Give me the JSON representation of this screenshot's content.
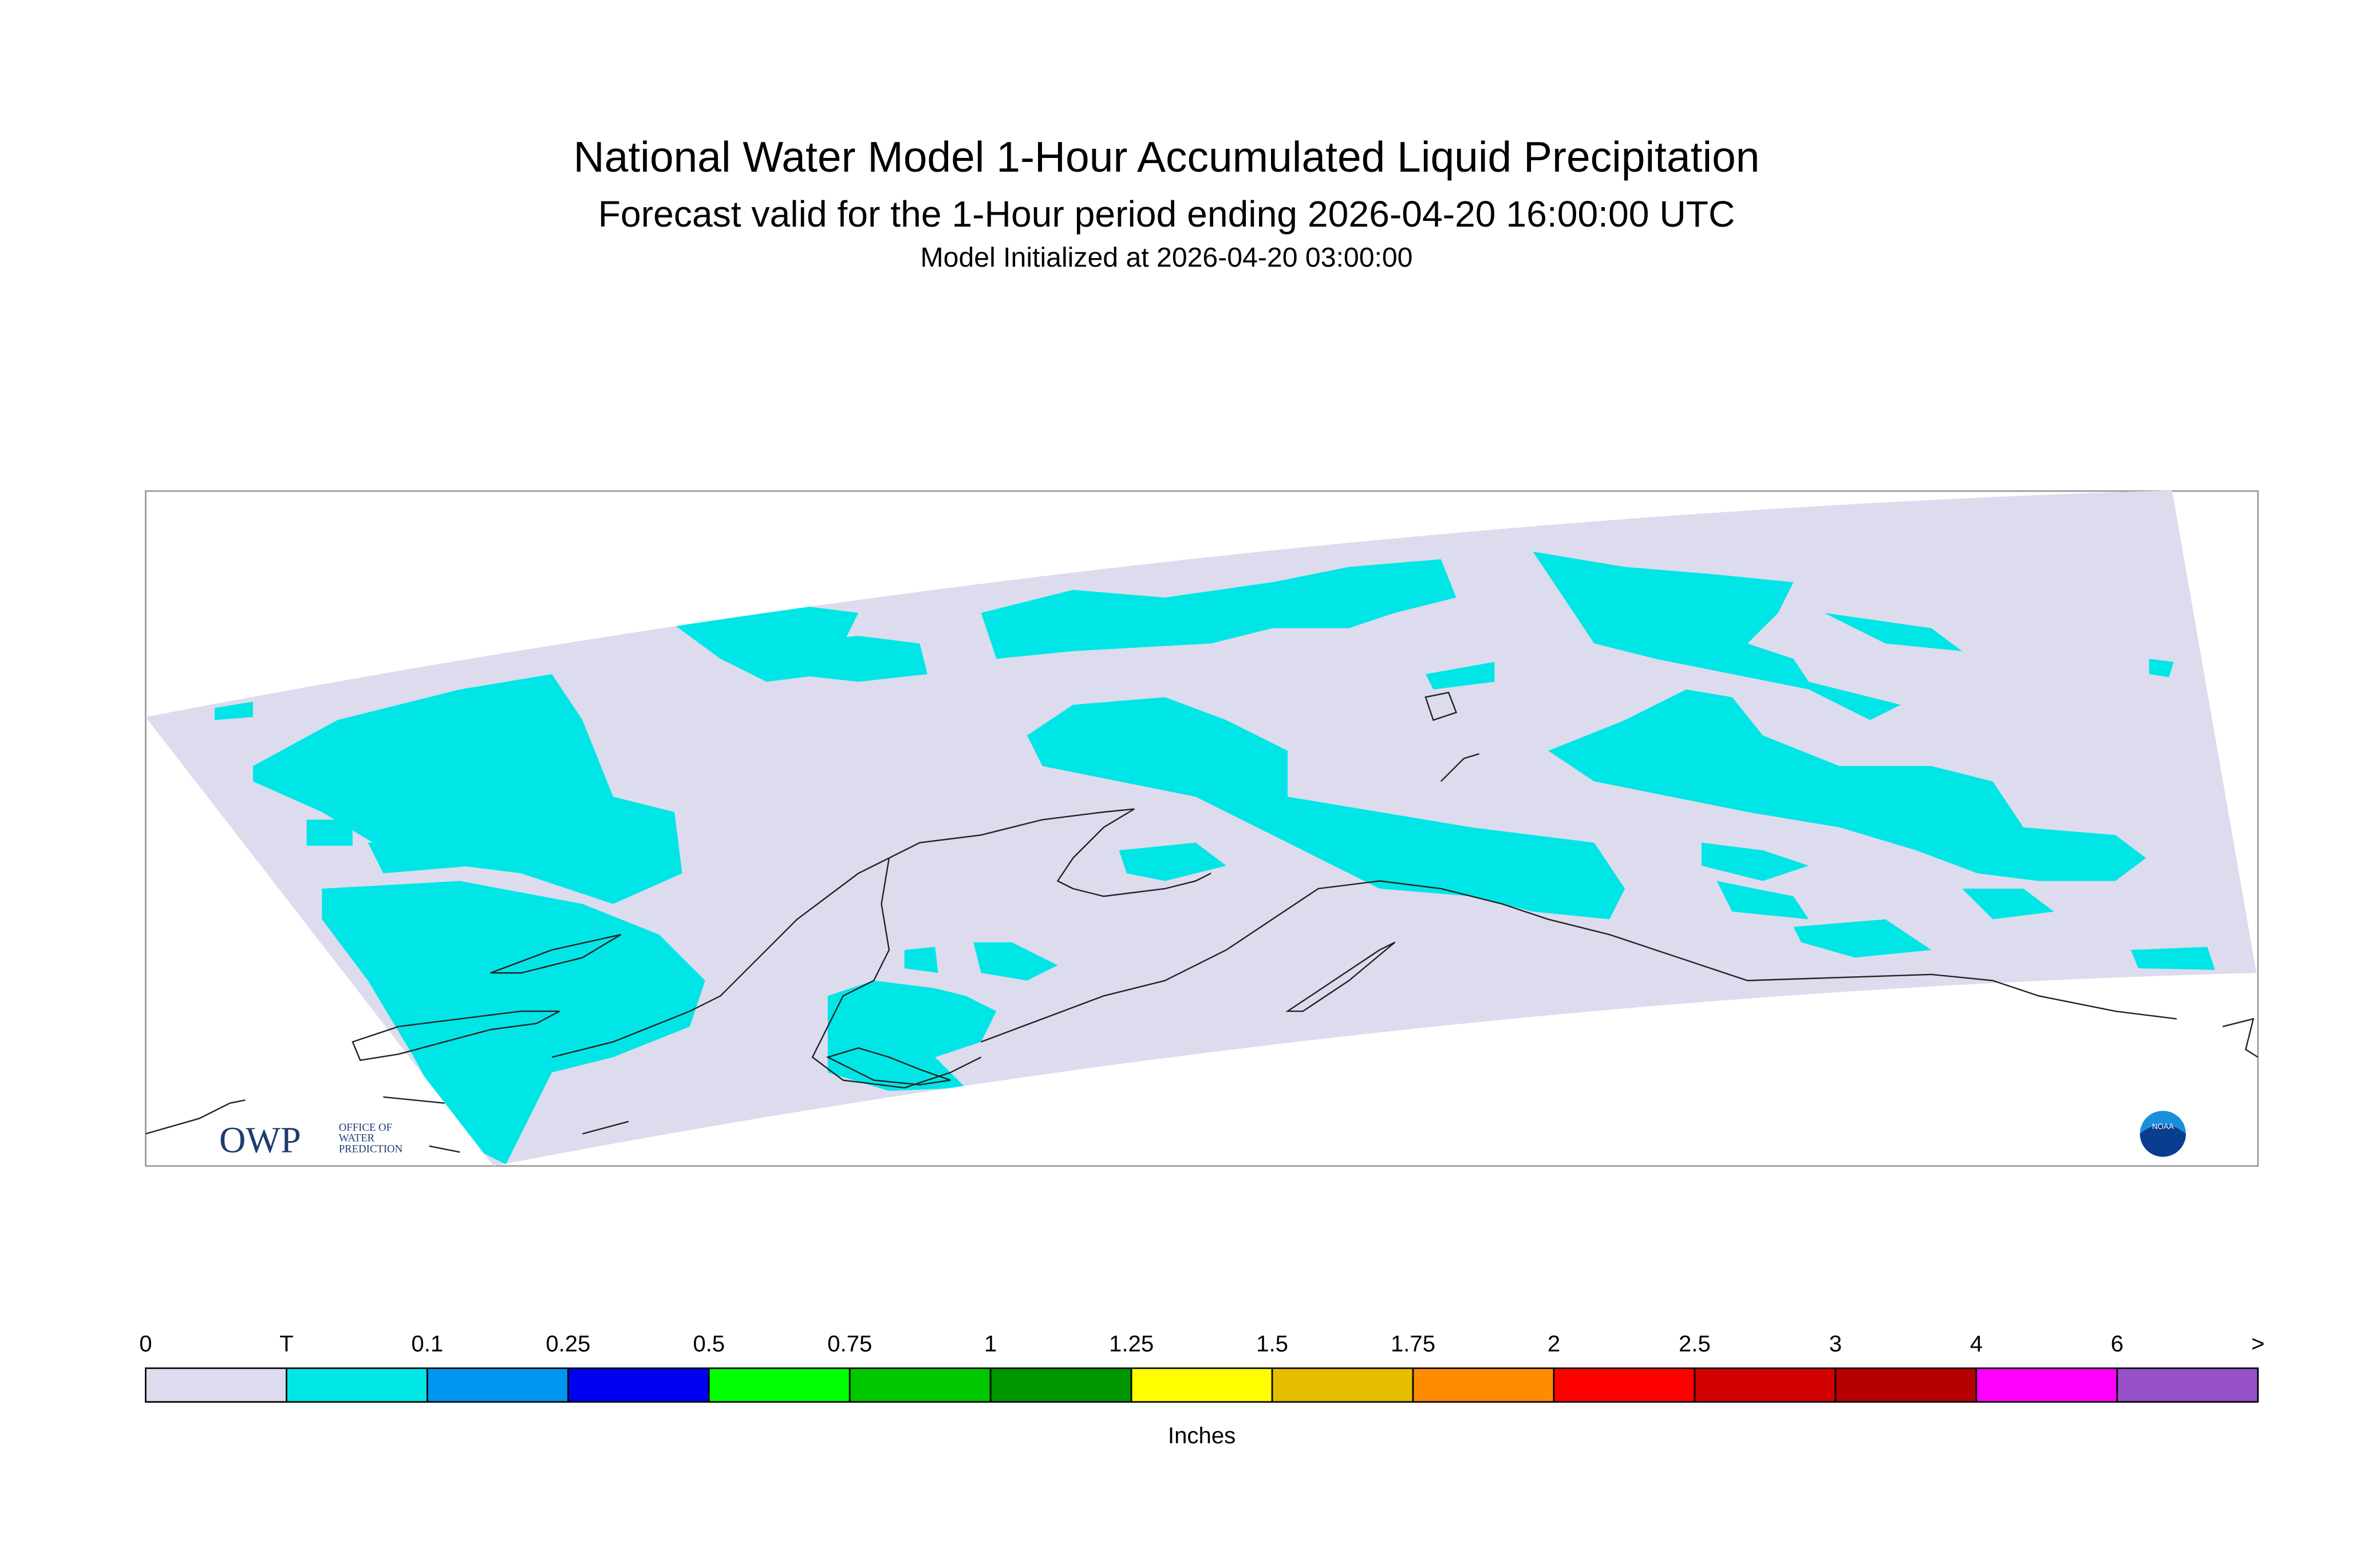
{
  "header": {
    "title": "National Water Model 1-Hour Accumulated Liquid Precipitation",
    "subtitle": "Forecast valid for the 1-Hour period ending 2026-04-20 16:00:00 UTC",
    "initialized": "Model Initialized at 2026-04-20 03:00:00"
  },
  "logos": {
    "owp": "OWP",
    "owp_lines": [
      "OFFICE OF",
      "WATER",
      "PREDICTION"
    ],
    "noaa": "NOAA"
  },
  "legend": {
    "labels": [
      "0",
      "T",
      "0.1",
      "0.25",
      "0.5",
      "0.75",
      "1",
      "1.25",
      "1.5",
      "1.75",
      "2",
      "2.5",
      "3",
      "4",
      "6",
      ">"
    ],
    "colors": [
      "#dcdcee",
      "#00e6e6",
      "#0096f0",
      "#0000f0",
      "#00ff00",
      "#00c800",
      "#009600",
      "#ffff00",
      "#e6be00",
      "#ff8c00",
      "#ff0000",
      "#d20000",
      "#b40000",
      "#ff00ff",
      "#9650c8"
    ],
    "unit": "Inches"
  }
}
